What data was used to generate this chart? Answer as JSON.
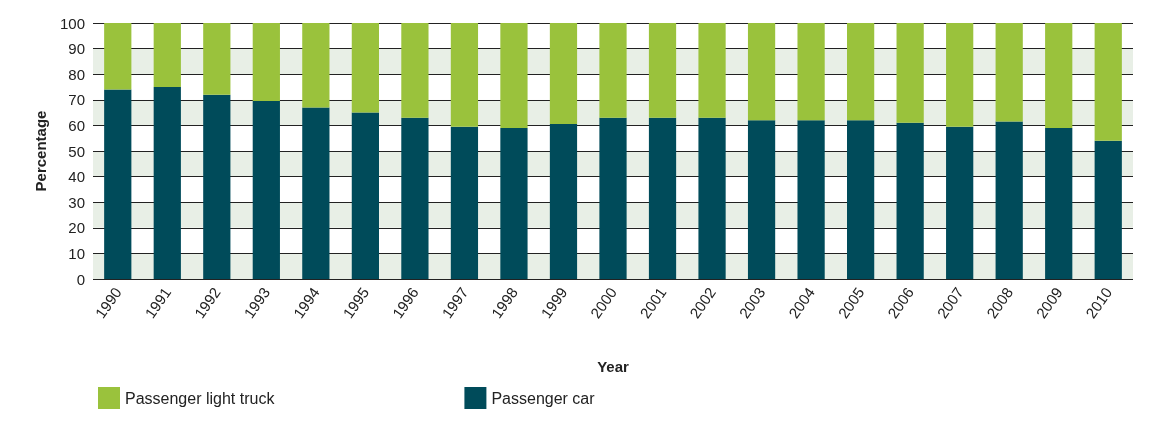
{
  "chart_data": {
    "type": "bar",
    "stacked": true,
    "xlabel": "Year",
    "ylabel": "Percentage",
    "categories": [
      "1990",
      "1991",
      "1992",
      "1993",
      "1994",
      "1995",
      "1996",
      "1997",
      "1998",
      "1999",
      "2000",
      "2001",
      "2002",
      "2003",
      "2004",
      "2005",
      "2006",
      "2007",
      "2008",
      "2009",
      "2010"
    ],
    "series": [
      {
        "name": "Passenger car",
        "color": "#004b5a",
        "values": [
          74,
          75,
          72,
          69.5,
          67,
          65,
          63,
          59.5,
          59,
          60.5,
          63,
          63,
          63,
          62,
          62,
          62,
          61,
          59.5,
          61.5,
          59,
          54
        ]
      },
      {
        "name": "Passenger light truck",
        "color": "#9ac23c",
        "values": [
          26,
          25,
          28,
          30.5,
          33,
          35,
          37,
          40.5,
          41,
          39.5,
          37,
          37,
          37,
          38,
          38,
          38,
          39,
          40.5,
          38.5,
          41,
          46
        ]
      }
    ],
    "ylim": [
      0,
      100
    ],
    "yticks": [
      0,
      10,
      20,
      30,
      40,
      50,
      60,
      70,
      80,
      90,
      100
    ],
    "grid": "y",
    "legend": "bottom left"
  }
}
